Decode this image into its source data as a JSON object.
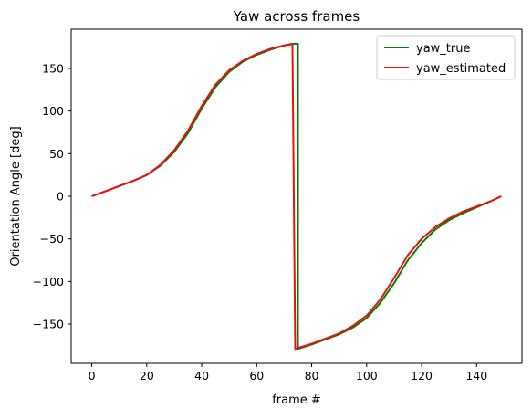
{
  "chart_data": {
    "type": "line",
    "title": "Yaw across frames",
    "xlabel": "frame #",
    "ylabel": "Orientation Angle [deg]",
    "xlim": [
      -7.5,
      156.5
    ],
    "ylim": [
      -196,
      196
    ],
    "xticks": [
      0,
      20,
      40,
      60,
      80,
      100,
      120,
      140
    ],
    "yticks": [
      -150,
      -100,
      -50,
      0,
      50,
      100,
      150
    ],
    "grid": false,
    "legend_position": "top-right",
    "series": [
      {
        "name": "yaw_true",
        "color": "#008000",
        "points": [
          [
            0,
            0
          ],
          [
            5,
            6
          ],
          [
            10,
            12
          ],
          [
            15,
            18
          ],
          [
            20,
            25
          ],
          [
            25,
            36
          ],
          [
            30,
            52
          ],
          [
            35,
            74
          ],
          [
            40,
            103
          ],
          [
            45,
            128
          ],
          [
            50,
            146
          ],
          [
            55,
            158
          ],
          [
            60,
            166
          ],
          [
            65,
            172
          ],
          [
            70,
            177
          ],
          [
            74,
            179
          ],
          [
            75,
            179
          ],
          [
            75,
            -179
          ],
          [
            80,
            -174
          ],
          [
            85,
            -168
          ],
          [
            90,
            -162
          ],
          [
            95,
            -154
          ],
          [
            100,
            -143
          ],
          [
            105,
            -125
          ],
          [
            110,
            -102
          ],
          [
            115,
            -75
          ],
          [
            120,
            -55
          ],
          [
            125,
            -39
          ],
          [
            130,
            -28
          ],
          [
            135,
            -20
          ],
          [
            140,
            -13
          ],
          [
            145,
            -6
          ],
          [
            149,
            0
          ]
        ]
      },
      {
        "name": "yaw_estimated",
        "color": "#e8110f",
        "points": [
          [
            0,
            0
          ],
          [
            5,
            6
          ],
          [
            10,
            12
          ],
          [
            15,
            18
          ],
          [
            20,
            25
          ],
          [
            25,
            37
          ],
          [
            30,
            54
          ],
          [
            35,
            77
          ],
          [
            40,
            106
          ],
          [
            45,
            131
          ],
          [
            50,
            148
          ],
          [
            55,
            159
          ],
          [
            60,
            167
          ],
          [
            65,
            173
          ],
          [
            70,
            177
          ],
          [
            73,
            179
          ],
          [
            74,
            -179
          ],
          [
            75,
            -178
          ],
          [
            80,
            -173
          ],
          [
            85,
            -167
          ],
          [
            90,
            -161
          ],
          [
            95,
            -152
          ],
          [
            100,
            -140
          ],
          [
            105,
            -121
          ],
          [
            110,
            -96
          ],
          [
            115,
            -69
          ],
          [
            120,
            -50
          ],
          [
            125,
            -36
          ],
          [
            130,
            -26
          ],
          [
            135,
            -18
          ],
          [
            140,
            -12
          ],
          [
            145,
            -6
          ],
          [
            149,
            0
          ]
        ]
      }
    ]
  }
}
